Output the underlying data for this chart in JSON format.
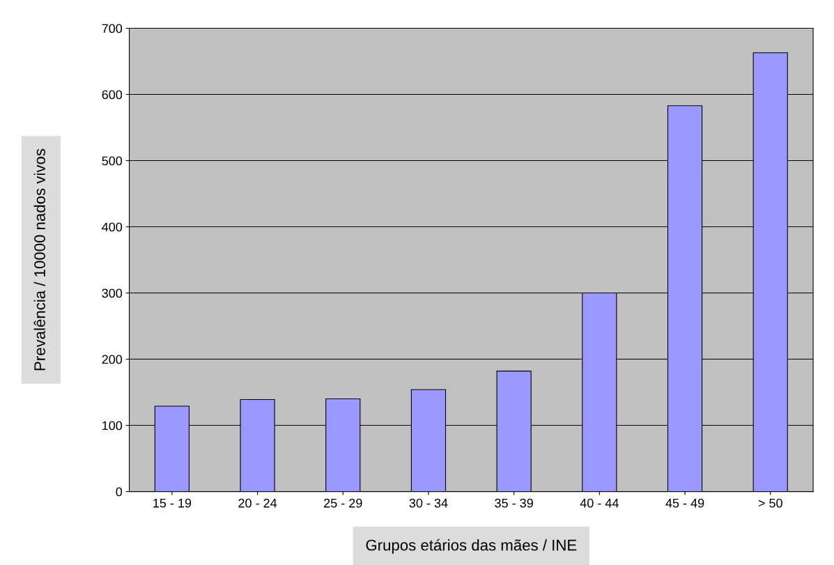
{
  "chart_data": {
    "type": "bar",
    "categories": [
      "15 - 19",
      "20 - 24",
      "25 - 29",
      "30 - 34",
      "35 - 39",
      "40 - 44",
      "45 - 49",
      "> 50"
    ],
    "values": [
      129,
      139,
      140,
      154,
      182,
      300,
      583,
      663
    ],
    "color": "#9999ff",
    "xlabel": "Grupos etários das mães / INE",
    "ylabel": "Prevalência / 10000 nados vivos",
    "ylim": [
      0,
      700
    ],
    "yticks": [
      0,
      100,
      200,
      300,
      400,
      500,
      600,
      700
    ],
    "grid": "y",
    "legend": false
  }
}
